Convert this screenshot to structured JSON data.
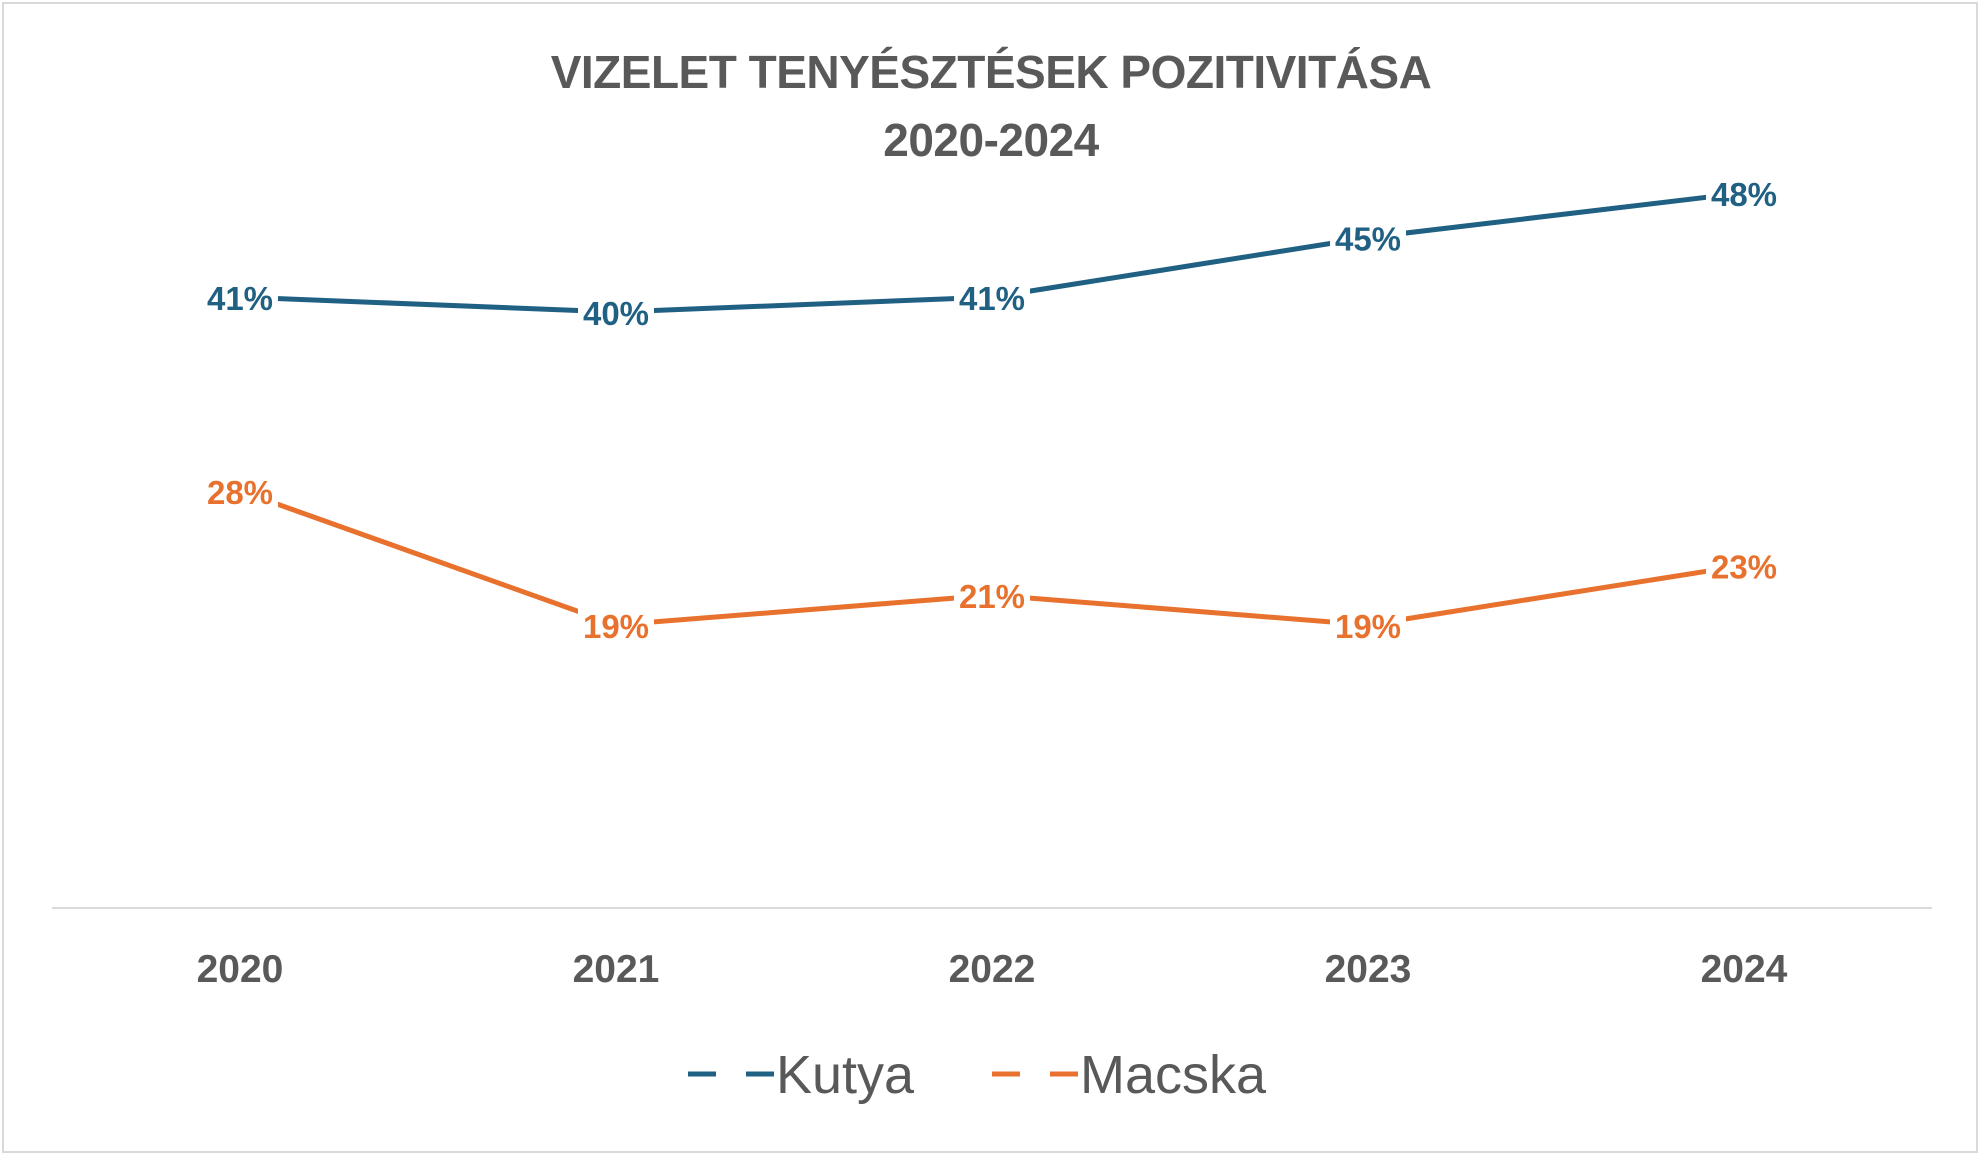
{
  "chart_data": {
    "type": "line",
    "title": "VIZELET TENYÉSZTÉSEK POZITIVITÁSA",
    "subtitle": "2020-2024",
    "categories": [
      "2020",
      "2021",
      "2022",
      "2023",
      "2024"
    ],
    "series": [
      {
        "name": "Kutya",
        "values": [
          41,
          40,
          41,
          45,
          48
        ],
        "labels": [
          "41%",
          "40%",
          "41%",
          "45%",
          "48%"
        ],
        "color": "#1f6083"
      },
      {
        "name": "Macska",
        "values": [
          28,
          19,
          21,
          19,
          23
        ],
        "labels": [
          "28%",
          "19%",
          "21%",
          "19%",
          "23%"
        ],
        "color": "#e8712e"
      }
    ],
    "ylim": [
      0,
      60
    ],
    "grid": false,
    "legend": "bottom"
  }
}
